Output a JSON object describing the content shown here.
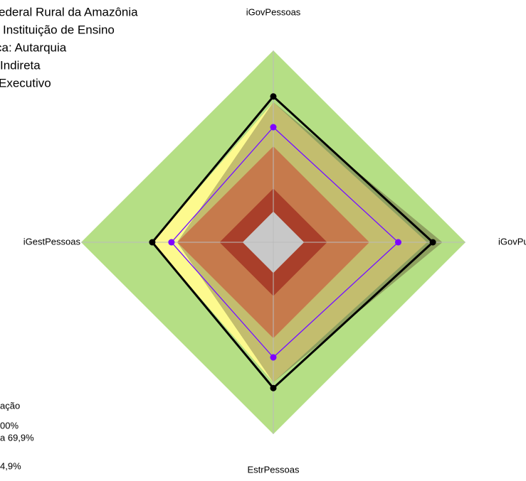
{
  "chart_data": {
    "type": "radar",
    "title_lines": [
      "ederal Rural da Amazônia",
      "Instituição de Ensino",
      "ca: Autarquia",
      "Indireta",
      "Executivo"
    ],
    "axes": [
      "iGovPessoas",
      "iGovPub",
      "EstrPessoas",
      "iGestPessoas"
    ],
    "rlim": [
      0,
      100
    ],
    "bands": [
      {
        "color": "#b5df85",
        "values": [
          100,
          100,
          100,
          100
        ]
      },
      {
        "color": "#fdfa8e",
        "values": [
          73,
          73,
          73,
          63
        ]
      },
      {
        "color": "#8ea060",
        "values": [
          73,
          88,
          73,
          50
        ]
      },
      {
        "color": "#c3bd6e",
        "values": [
          73,
          80,
          73,
          50
        ]
      },
      {
        "color": "#c67a4c",
        "values": [
          50,
          50,
          50,
          50
        ]
      },
      {
        "color": "#a93f2a",
        "values": [
          28,
          28,
          28,
          28
        ]
      },
      {
        "color": "#c8c8c8",
        "values": [
          16,
          16,
          16,
          16
        ]
      }
    ],
    "series": [
      {
        "color": "#000000",
        "values": [
          76,
          83,
          76,
          63
        ]
      },
      {
        "color": "#33ccff",
        "values": [
          60,
          65,
          60,
          53
        ]
      },
      {
        "color": "#8000ff",
        "values": [
          60,
          65,
          60,
          53
        ]
      }
    ],
    "legend_fragments": [
      "ação",
      "00%",
      "a 69,9%",
      "4,9%"
    ]
  }
}
